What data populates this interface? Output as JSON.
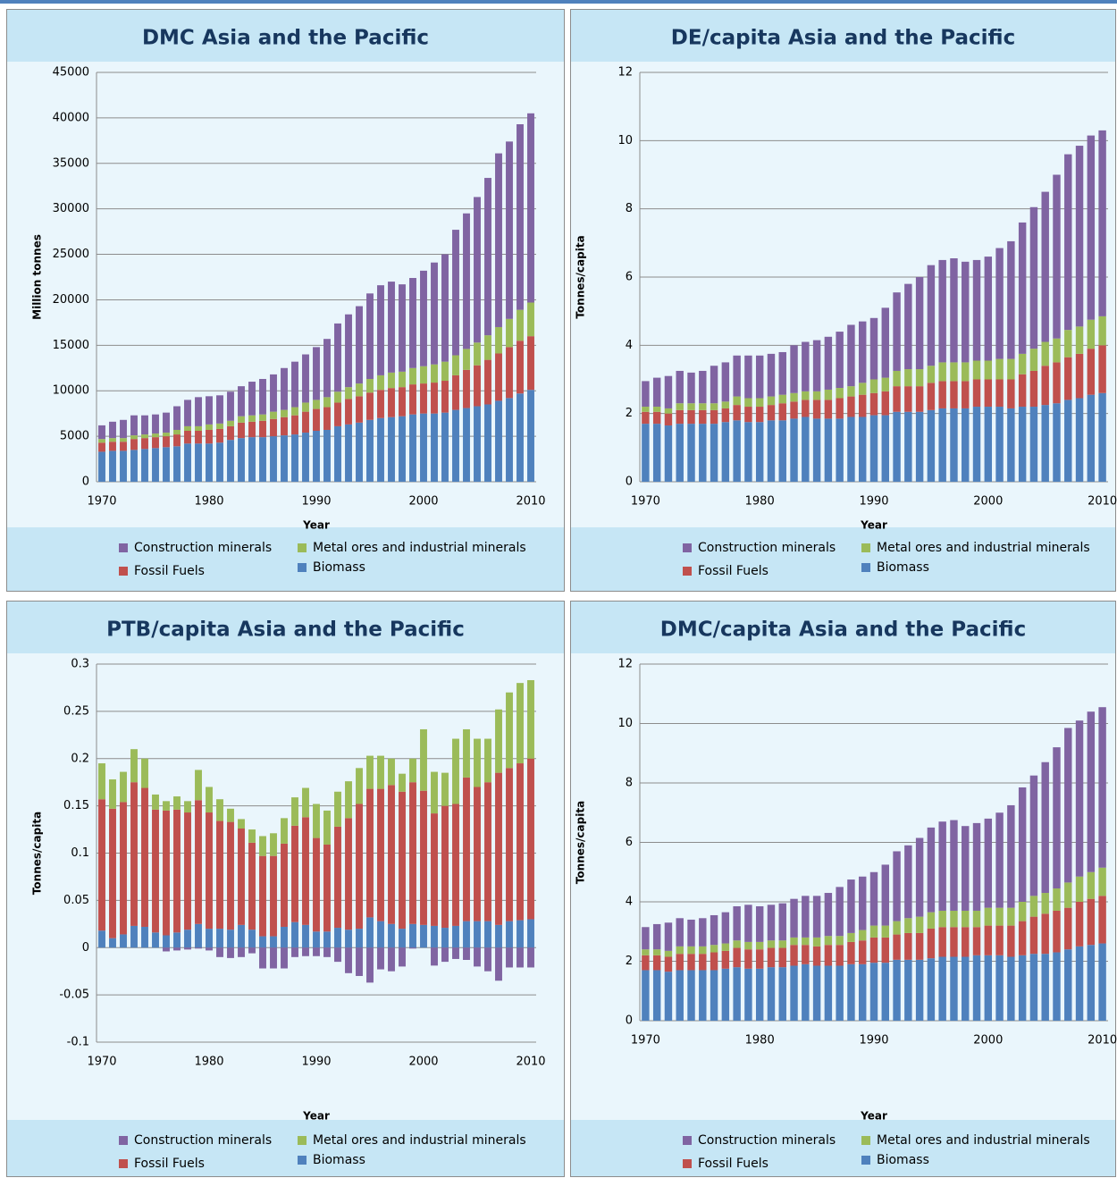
{
  "chart_data": [
    {
      "type": "bar",
      "stacked": true,
      "title": "DMC Asia and the Pacific",
      "x_label": "Year",
      "y_label": "Million tonnes",
      "x": [
        1970,
        1971,
        1972,
        1973,
        1974,
        1975,
        1976,
        1977,
        1978,
        1979,
        1980,
        1981,
        1982,
        1983,
        1984,
        1985,
        1986,
        1987,
        1988,
        1989,
        1990,
        1991,
        1992,
        1993,
        1994,
        1995,
        1996,
        1997,
        1998,
        1999,
        2000,
        2001,
        2002,
        2003,
        2004,
        2005,
        2006,
        2007,
        2008,
        2009,
        2010
      ],
      "xlim": [
        1969.5,
        2010.5
      ],
      "xticks": [
        1970,
        1980,
        1990,
        2000,
        2010
      ],
      "ylim": [
        0,
        45000
      ],
      "yticks": [
        0,
        5000,
        10000,
        15000,
        20000,
        25000,
        30000,
        35000,
        40000,
        45000
      ],
      "grid": true,
      "series": [
        {
          "name": "Construction minerals",
          "color": "#8064a2",
          "values": [
            1500,
            1800,
            2000,
            2200,
            2100,
            2100,
            2200,
            2600,
            2900,
            3200,
            3100,
            3100,
            3200,
            3300,
            3700,
            3900,
            4100,
            4600,
            5000,
            5300,
            5800,
            6400,
            7500,
            8000,
            8500,
            9400,
            9900,
            10000,
            9600,
            9900,
            10500,
            11200,
            11800,
            13800,
            14900,
            16000,
            17300,
            19100,
            19500,
            20400,
            20800
          ]
        },
        {
          "name": "Metal ores and industrial minerals",
          "color": "#9bbb59",
          "values": [
            400,
            400,
            400,
            400,
            400,
            400,
            400,
            500,
            500,
            500,
            600,
            600,
            600,
            700,
            700,
            700,
            800,
            800,
            900,
            1000,
            1000,
            1100,
            1200,
            1300,
            1400,
            1500,
            1600,
            1700,
            1700,
            1800,
            1900,
            2000,
            2100,
            2200,
            2300,
            2500,
            2700,
            2900,
            3100,
            3400,
            3700
          ]
        },
        {
          "name": "Fossil Fuels",
          "color": "#c0504d",
          "values": [
            1000,
            1000,
            1000,
            1200,
            1200,
            1200,
            1200,
            1300,
            1400,
            1400,
            1500,
            1500,
            1500,
            1700,
            1700,
            1800,
            1900,
            2000,
            2100,
            2300,
            2400,
            2500,
            2600,
            2800,
            2900,
            3000,
            3100,
            3200,
            3200,
            3300,
            3300,
            3400,
            3500,
            3800,
            4200,
            4500,
            4900,
            5200,
            5600,
            5800,
            5900
          ]
        },
        {
          "name": "Biomass",
          "color": "#4f81bd",
          "values": [
            3300,
            3400,
            3400,
            3500,
            3600,
            3700,
            3800,
            3900,
            4200,
            4200,
            4200,
            4300,
            4600,
            4800,
            4900,
            4900,
            5000,
            5100,
            5200,
            5400,
            5600,
            5700,
            6100,
            6300,
            6500,
            6800,
            7000,
            7100,
            7200,
            7400,
            7500,
            7500,
            7600,
            7900,
            8100,
            8300,
            8500,
            8900,
            9200,
            9700,
            10100
          ]
        }
      ]
    },
    {
      "type": "bar",
      "stacked": true,
      "title": "DE/capita Asia and the Pacific",
      "x_label": "Year",
      "y_label": "Tonnes/capita",
      "x": [
        1970,
        1971,
        1972,
        1973,
        1974,
        1975,
        1976,
        1977,
        1978,
        1979,
        1980,
        1981,
        1982,
        1983,
        1984,
        1985,
        1986,
        1987,
        1988,
        1989,
        1990,
        1991,
        1992,
        1993,
        1994,
        1995,
        1996,
        1997,
        1998,
        1999,
        2000,
        2001,
        2002,
        2003,
        2004,
        2005,
        2006,
        2007,
        2008,
        2009,
        2010
      ],
      "xlim": [
        1969.5,
        2010.5
      ],
      "xticks": [
        1970,
        1980,
        1990,
        2000,
        2010
      ],
      "ylim": [
        0,
        12
      ],
      "yticks": [
        0,
        2,
        4,
        6,
        8,
        10,
        12
      ],
      "grid": true,
      "series": [
        {
          "name": "Construction minerals",
          "color": "#8064a2",
          "values": [
            0.75,
            0.85,
            0.95,
            0.95,
            0.9,
            0.95,
            1.1,
            1.15,
            1.2,
            1.25,
            1.25,
            1.25,
            1.25,
            1.4,
            1.45,
            1.5,
            1.55,
            1.65,
            1.8,
            1.8,
            1.8,
            2.05,
            2.3,
            2.5,
            2.7,
            2.95,
            3.0,
            3.05,
            2.95,
            2.95,
            3.05,
            3.25,
            3.45,
            3.85,
            4.15,
            4.4,
            4.8,
            5.15,
            5.3,
            5.4,
            5.45
          ]
        },
        {
          "name": "Metal ores and industrial minerals",
          "color": "#9bbb59",
          "values": [
            0.15,
            0.15,
            0.15,
            0.2,
            0.2,
            0.2,
            0.2,
            0.2,
            0.25,
            0.25,
            0.25,
            0.25,
            0.25,
            0.25,
            0.25,
            0.25,
            0.3,
            0.3,
            0.3,
            0.35,
            0.4,
            0.4,
            0.45,
            0.5,
            0.5,
            0.5,
            0.55,
            0.55,
            0.55,
            0.55,
            0.55,
            0.6,
            0.6,
            0.6,
            0.65,
            0.7,
            0.7,
            0.8,
            0.8,
            0.85,
            0.85
          ]
        },
        {
          "name": "Fossil Fuels",
          "color": "#c0504d",
          "values": [
            0.35,
            0.35,
            0.35,
            0.4,
            0.4,
            0.4,
            0.4,
            0.4,
            0.45,
            0.45,
            0.45,
            0.45,
            0.5,
            0.5,
            0.5,
            0.55,
            0.55,
            0.6,
            0.6,
            0.65,
            0.65,
            0.7,
            0.75,
            0.75,
            0.75,
            0.8,
            0.8,
            0.8,
            0.8,
            0.8,
            0.8,
            0.8,
            0.85,
            0.95,
            1.05,
            1.15,
            1.2,
            1.25,
            1.3,
            1.35,
            1.4
          ]
        },
        {
          "name": "Biomass",
          "color": "#4f81bd",
          "values": [
            1.7,
            1.7,
            1.65,
            1.7,
            1.7,
            1.7,
            1.7,
            1.75,
            1.8,
            1.75,
            1.75,
            1.8,
            1.8,
            1.85,
            1.9,
            1.85,
            1.85,
            1.85,
            1.9,
            1.9,
            1.95,
            1.95,
            2.05,
            2.05,
            2.05,
            2.1,
            2.15,
            2.15,
            2.15,
            2.2,
            2.2,
            2.2,
            2.15,
            2.2,
            2.2,
            2.25,
            2.3,
            2.4,
            2.45,
            2.55,
            2.6
          ]
        }
      ]
    },
    {
      "type": "bar",
      "stacked": true,
      "title": "PTB/capita Asia and the Pacific",
      "x_label": "Year",
      "y_label": "Tonnes/capita",
      "x": [
        1970,
        1971,
        1972,
        1973,
        1974,
        1975,
        1976,
        1977,
        1978,
        1979,
        1980,
        1981,
        1982,
        1983,
        1984,
        1985,
        1986,
        1987,
        1988,
        1989,
        1990,
        1991,
        1992,
        1993,
        1994,
        1995,
        1996,
        1997,
        1998,
        1999,
        2000,
        2001,
        2002,
        2003,
        2004,
        2005,
        2006,
        2007,
        2008,
        2009,
        2010
      ],
      "xlim": [
        1969.5,
        2010.5
      ],
      "xticks": [
        1970,
        1980,
        1990,
        2000,
        2010
      ],
      "ylim": [
        -0.1,
        0.3
      ],
      "yticks": [
        -0.1,
        -0.05,
        0,
        0.05,
        0.1,
        0.15,
        0.2,
        0.25,
        0.3
      ],
      "grid": true,
      "series": [
        {
          "name": "Construction minerals",
          "color": "#8064a2",
          "values": [
            0,
            0,
            0,
            0,
            0,
            0,
            -0.004,
            -0.003,
            -0.002,
            -0.001,
            -0.003,
            -0.01,
            -0.011,
            -0.01,
            -0.006,
            -0.022,
            -0.022,
            -0.022,
            -0.01,
            -0.009,
            -0.009,
            -0.01,
            -0.015,
            -0.027,
            -0.03,
            -0.037,
            -0.023,
            -0.025,
            -0.02,
            -0.001,
            0,
            -0.019,
            -0.015,
            -0.012,
            -0.013,
            -0.02,
            -0.025,
            -0.035,
            -0.021,
            -0.021,
            -0.021
          ]
        },
        {
          "name": "Metal ores and industrial minerals",
          "color": "#9bbb59",
          "values": [
            0.038,
            0.031,
            0.032,
            0.035,
            0.031,
            0.016,
            0.01,
            0.014,
            0.012,
            0.032,
            0.027,
            0.023,
            0.014,
            0.01,
            0.014,
            0.021,
            0.024,
            0.027,
            0.03,
            0.031,
            0.036,
            0.036,
            0.037,
            0.039,
            0.038,
            0.035,
            0.035,
            0.028,
            0.019,
            0.025,
            0.065,
            0.044,
            0.035,
            0.069,
            0.051,
            0.051,
            0.046,
            0.067,
            0.08,
            0.085,
            0.083
          ]
        },
        {
          "name": "Fossil Fuels",
          "color": "#c0504d",
          "values": [
            0.139,
            0.137,
            0.14,
            0.152,
            0.147,
            0.13,
            0.132,
            0.13,
            0.124,
            0.131,
            0.123,
            0.114,
            0.114,
            0.102,
            0.092,
            0.085,
            0.085,
            0.088,
            0.102,
            0.114,
            0.099,
            0.092,
            0.107,
            0.118,
            0.132,
            0.136,
            0.14,
            0.147,
            0.145,
            0.15,
            0.142,
            0.119,
            0.129,
            0.129,
            0.152,
            0.142,
            0.147,
            0.161,
            0.162,
            0.166,
            0.17
          ]
        },
        {
          "name": "Biomass",
          "color": "#4f81bd",
          "values": [
            0.018,
            0.01,
            0.014,
            0.023,
            0.022,
            0.016,
            0.013,
            0.016,
            0.019,
            0.025,
            0.02,
            0.02,
            0.019,
            0.024,
            0.019,
            0.012,
            0.012,
            0.022,
            0.027,
            0.024,
            0.017,
            0.017,
            0.021,
            0.019,
            0.02,
            0.032,
            0.028,
            0.025,
            0.02,
            0.025,
            0.024,
            0.023,
            0.021,
            0.023,
            0.028,
            0.028,
            0.028,
            0.024,
            0.028,
            0.029,
            0.03
          ]
        }
      ]
    },
    {
      "type": "bar",
      "stacked": true,
      "title": "DMC/capita Asia and the Pacific",
      "x_label": "Year",
      "y_label": "Tonnes/capita",
      "x": [
        1970,
        1971,
        1972,
        1973,
        1974,
        1975,
        1976,
        1977,
        1978,
        1979,
        1980,
        1981,
        1982,
        1983,
        1984,
        1985,
        1986,
        1987,
        1988,
        1989,
        1990,
        1991,
        1992,
        1993,
        1994,
        1995,
        1996,
        1997,
        1998,
        1999,
        2000,
        2001,
        2002,
        2003,
        2004,
        2005,
        2006,
        2007,
        2008,
        2009,
        2010
      ],
      "xlim": [
        1969.5,
        2010.5
      ],
      "xticks": [
        1970,
        1980,
        1990,
        2000,
        2010
      ],
      "ylim": [
        0,
        12
      ],
      "yticks": [
        0,
        2,
        4,
        6,
        8,
        10,
        12
      ],
      "grid": true,
      "series": [
        {
          "name": "Construction minerals",
          "color": "#8064a2",
          "values": [
            0.75,
            0.85,
            0.95,
            0.95,
            0.9,
            0.95,
            1.0,
            1.05,
            1.15,
            1.25,
            1.2,
            1.2,
            1.25,
            1.3,
            1.4,
            1.4,
            1.45,
            1.65,
            1.8,
            1.8,
            1.8,
            2.05,
            2.35,
            2.45,
            2.65,
            2.85,
            3.0,
            3.05,
            2.85,
            2.95,
            3.0,
            3.2,
            3.45,
            3.85,
            4.05,
            4.4,
            4.75,
            5.2,
            5.25,
            5.4,
            5.4
          ]
        },
        {
          "name": "Metal ores and industrial minerals",
          "color": "#9bbb59",
          "values": [
            0.2,
            0.2,
            0.2,
            0.25,
            0.25,
            0.25,
            0.25,
            0.25,
            0.25,
            0.25,
            0.25,
            0.25,
            0.25,
            0.25,
            0.25,
            0.3,
            0.3,
            0.3,
            0.3,
            0.35,
            0.4,
            0.4,
            0.45,
            0.5,
            0.55,
            0.55,
            0.55,
            0.55,
            0.55,
            0.55,
            0.6,
            0.6,
            0.6,
            0.65,
            0.7,
            0.7,
            0.75,
            0.85,
            0.85,
            0.9,
            0.95
          ]
        },
        {
          "name": "Fossil Fuels",
          "color": "#c0504d",
          "values": [
            0.5,
            0.5,
            0.5,
            0.55,
            0.55,
            0.55,
            0.6,
            0.6,
            0.65,
            0.65,
            0.65,
            0.65,
            0.65,
            0.7,
            0.65,
            0.65,
            0.7,
            0.7,
            0.75,
            0.8,
            0.85,
            0.85,
            0.85,
            0.9,
            0.9,
            1.0,
            1.0,
            1.0,
            1.0,
            0.95,
            1.0,
            1.0,
            1.05,
            1.15,
            1.25,
            1.35,
            1.4,
            1.4,
            1.5,
            1.55,
            1.6
          ]
        },
        {
          "name": "Biomass",
          "color": "#4f81bd",
          "values": [
            1.7,
            1.7,
            1.65,
            1.7,
            1.7,
            1.7,
            1.7,
            1.75,
            1.8,
            1.75,
            1.75,
            1.8,
            1.8,
            1.85,
            1.9,
            1.85,
            1.85,
            1.85,
            1.9,
            1.9,
            1.95,
            1.95,
            2.05,
            2.05,
            2.05,
            2.1,
            2.15,
            2.15,
            2.15,
            2.2,
            2.2,
            2.2,
            2.15,
            2.2,
            2.25,
            2.25,
            2.3,
            2.4,
            2.5,
            2.55,
            2.6
          ]
        }
      ]
    }
  ]
}
